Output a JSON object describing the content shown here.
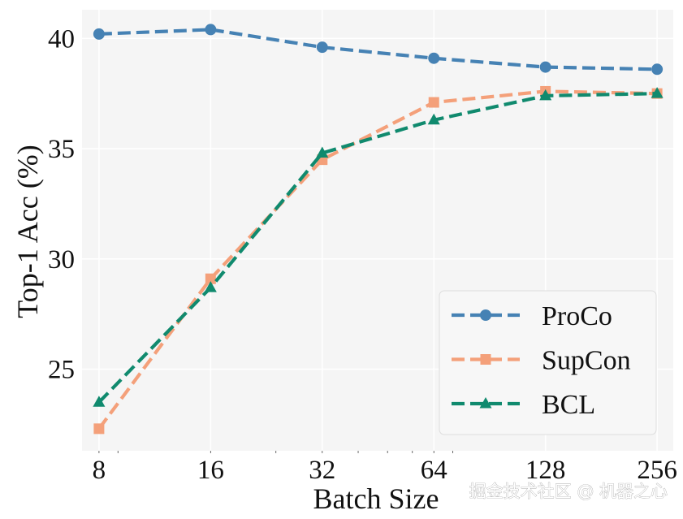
{
  "chart_data": {
    "type": "line",
    "title": "",
    "xlabel": "Batch Size",
    "ylabel": "Top-1 Acc (%)",
    "x_scale": "log2",
    "categories": [
      "8",
      "16",
      "32",
      "64",
      "128",
      "256"
    ],
    "x": [
      8,
      16,
      32,
      64,
      128,
      256
    ],
    "xlim": [
      7.2,
      283
    ],
    "ylim": [
      21.3,
      41.3
    ],
    "yticks": [
      25,
      30,
      35,
      40
    ],
    "ytick_labels": [
      "25",
      "30",
      "35",
      "40"
    ],
    "grid": true,
    "legend_position": "bottom-right",
    "series": [
      {
        "name": "ProCo",
        "color": "#4682b4",
        "marker": "circle",
        "linestyle": "dashed",
        "values": [
          40.2,
          40.4,
          39.6,
          39.1,
          38.7,
          38.6
        ]
      },
      {
        "name": "SupCon",
        "color": "#f4a07a",
        "marker": "square",
        "linestyle": "dashed",
        "values": [
          22.3,
          29.1,
          34.5,
          37.1,
          37.6,
          37.5
        ]
      },
      {
        "name": "BCL",
        "color": "#108a6e",
        "marker": "triangle",
        "linestyle": "dashed",
        "values": [
          23.5,
          28.7,
          34.8,
          36.3,
          37.4,
          37.5
        ]
      }
    ]
  },
  "watermark": {
    "text": "掘金技术社区 @ 机器之心"
  }
}
